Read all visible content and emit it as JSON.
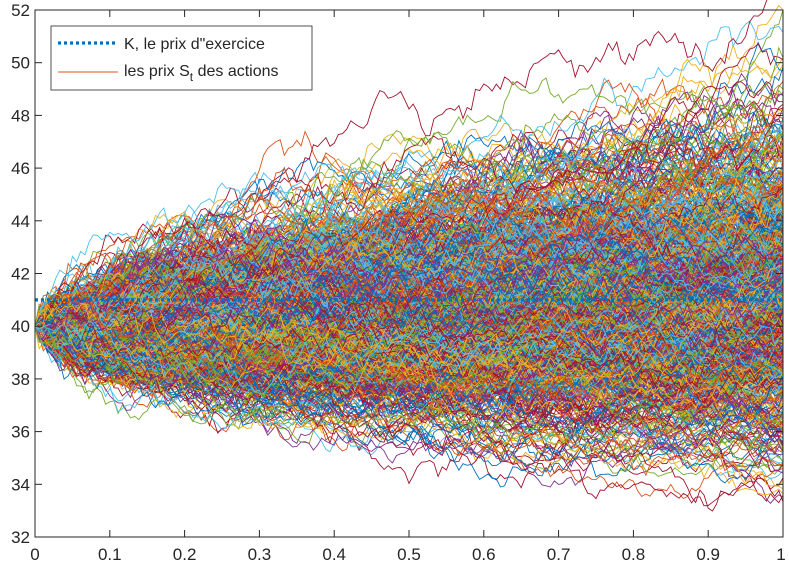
{
  "chart_data": {
    "type": "line",
    "description_note": "",
    "x_range": [
      0,
      1
    ],
    "ylim": [
      32,
      52
    ],
    "xticks": [
      0,
      0.1,
      0.2,
      0.3,
      0.4,
      0.5,
      0.6,
      0.7,
      0.8,
      0.9,
      1
    ],
    "xtick_labels": [
      "0",
      "0.1",
      "0.2",
      "0.3",
      "0.4",
      "0.5",
      "0.6",
      "0.7",
      "0.8",
      "0.9",
      "1"
    ],
    "yticks": [
      32,
      34,
      36,
      38,
      40,
      42,
      44,
      46,
      48,
      50,
      52
    ],
    "ytick_labels": [
      "32",
      "34",
      "36",
      "38",
      "40",
      "42",
      "44",
      "46",
      "48",
      "50",
      "52"
    ],
    "grid": false,
    "legend_position": "top-left",
    "strike": {
      "label": "K, le prix d\"exercice",
      "value": 41,
      "color": "#0072BD",
      "style": "dotted"
    },
    "paths": {
      "label_prefix": "les prix S",
      "label_subscript": "t",
      "label_suffix": " des actions",
      "legend_color": "#D95319",
      "start_value": 40,
      "approx_count": 1000,
      "end_range_approx": [
        33,
        50.7
      ],
      "colors": [
        "#0072BD",
        "#D95319",
        "#EDB120",
        "#7E2F8E",
        "#77AC30",
        "#4DBEEE",
        "#A2142F"
      ]
    }
  }
}
